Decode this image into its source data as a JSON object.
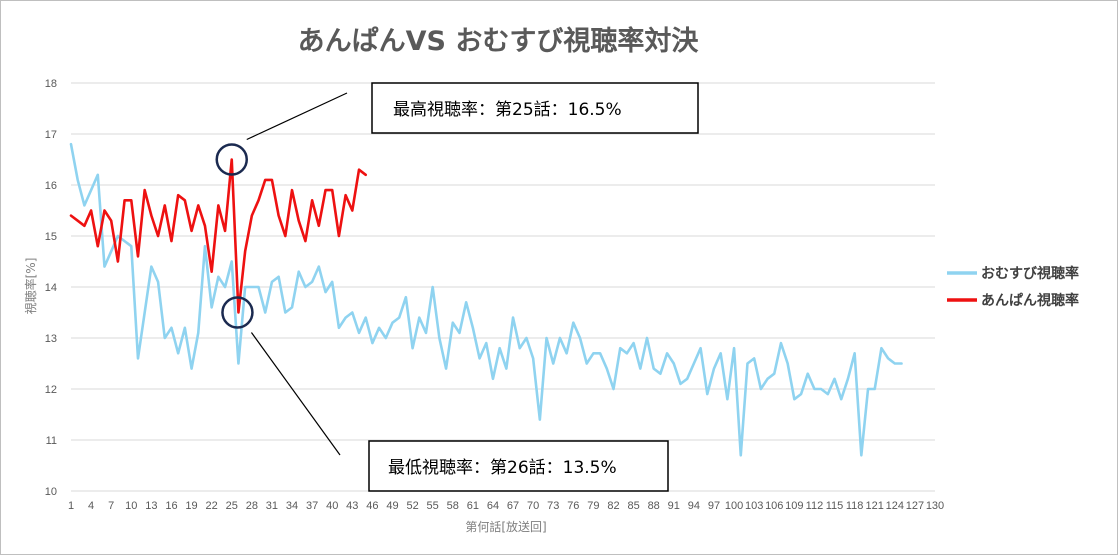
{
  "chart_data": {
    "type": "line",
    "title": "あんぱんVS おむすび視聴率対決",
    "xlabel": "第何話[放送回]",
    "ylabel": "視聴率[%]",
    "ylim": [
      10,
      18
    ],
    "yticks": [
      "10",
      "11",
      "12",
      "13",
      "14",
      "15",
      "16",
      "17",
      "18"
    ],
    "xticks": [
      "1",
      "4",
      "7",
      "10",
      "13",
      "16",
      "19",
      "22",
      "25",
      "28",
      "31",
      "34",
      "37",
      "40",
      "43",
      "46",
      "49",
      "52",
      "55",
      "58",
      "61",
      "64",
      "67",
      "70",
      "73",
      "76",
      "79",
      "82",
      "85",
      "88",
      "91",
      "94",
      "97",
      "100",
      "103",
      "106",
      "109",
      "112",
      "115",
      "118",
      "121",
      "124",
      "127",
      "130"
    ],
    "grid": "horizontal",
    "legend_position": "right",
    "series": [
      {
        "name": "おむすび視聴率",
        "color": "#8fd3f0",
        "values": [
          16.8,
          16.1,
          15.6,
          15.9,
          16.2,
          14.4,
          14.7,
          15.0,
          14.9,
          14.8,
          12.6,
          13.5,
          14.4,
          14.1,
          13.0,
          13.2,
          12.7,
          13.2,
          12.4,
          13.1,
          14.8,
          13.6,
          14.2,
          14.0,
          14.5,
          12.5,
          14.0,
          14.0,
          14.0,
          13.5,
          14.1,
          14.2,
          13.5,
          13.6,
          14.3,
          14.0,
          14.1,
          14.4,
          13.9,
          14.1,
          13.2,
          13.4,
          13.5,
          13.1,
          13.4,
          12.9,
          13.2,
          13.0,
          13.3,
          13.4,
          13.8,
          12.8,
          13.4,
          13.1,
          14.0,
          13.0,
          12.4,
          13.3,
          13.1,
          13.7,
          13.2,
          12.6,
          12.9,
          12.2,
          12.8,
          12.4,
          13.4,
          12.8,
          13.0,
          12.6,
          11.4,
          13.0,
          12.5,
          13.0,
          12.7,
          13.3,
          13.0,
          12.5,
          12.7,
          12.7,
          12.4,
          12.0,
          12.8,
          12.7,
          12.9,
          12.4,
          13.0,
          12.4,
          12.3,
          12.7,
          12.5,
          12.1,
          12.2,
          12.5,
          12.8,
          11.9,
          12.4,
          12.7,
          11.8,
          12.8,
          10.7,
          12.5,
          12.6,
          12.0,
          12.2,
          12.3,
          12.9,
          12.5,
          11.8,
          11.9,
          12.3,
          12.0,
          12.0,
          11.9,
          12.2,
          11.8,
          12.2,
          12.7,
          10.7,
          12.0,
          12.0,
          12.8,
          12.6,
          12.5,
          12.5
        ]
      },
      {
        "name": "あんぱん視聴率",
        "color": "#ee1111",
        "values": [
          15.4,
          15.3,
          15.2,
          15.5,
          14.8,
          15.5,
          15.3,
          14.5,
          15.7,
          15.7,
          14.6,
          15.9,
          15.4,
          15.0,
          15.6,
          14.9,
          15.8,
          15.7,
          15.1,
          15.6,
          15.2,
          14.3,
          15.6,
          15.1,
          16.5,
          13.5,
          14.7,
          15.4,
          15.7,
          16.1,
          16.1,
          15.4,
          15.0,
          15.9,
          15.3,
          14.9,
          15.7,
          15.2,
          15.9,
          15.9,
          15.0,
          15.8,
          15.5,
          16.3,
          16.2
        ]
      }
    ],
    "annotations": [
      {
        "text": "最高視聴率：第25話：16.5%",
        "episode": 25,
        "value": 16.5
      },
      {
        "text": "最低視聴率：第26話：13.5%",
        "episode": 26,
        "value": 13.5
      }
    ]
  }
}
